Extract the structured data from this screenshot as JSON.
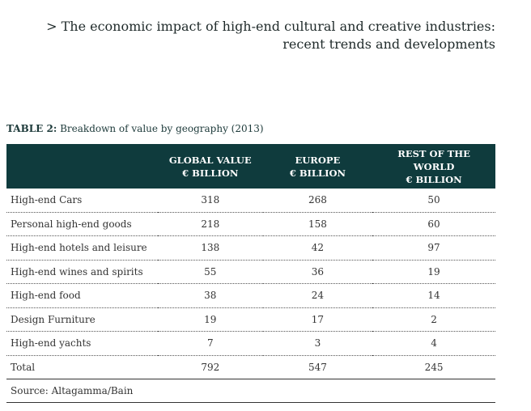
{
  "header": {
    "line1": "> The economic impact of high-end cultural and creative industries:",
    "line2": "recent trends and developments"
  },
  "table": {
    "label": "TABLE 2:",
    "title": "Breakdown of value by geography (2013)",
    "columns": [
      {
        "line1": "",
        "line2": ""
      },
      {
        "line1": "GLOBAL VALUE",
        "line2": "€ BILLION"
      },
      {
        "line1": "EUROPE",
        "line2": "€ BILLION"
      },
      {
        "line1": "REST OF THE WORLD",
        "line2": "€ BILLION"
      }
    ],
    "rows": [
      {
        "label": "High-end Cars",
        "global": "318",
        "europe": "268",
        "rest": "50"
      },
      {
        "label": "Personal high-end goods",
        "global": "218",
        "europe": "158",
        "rest": "60"
      },
      {
        "label": "High-end hotels and leisure",
        "global": "138",
        "europe": "42",
        "rest": "97"
      },
      {
        "label": "High-end wines and spirits",
        "global": "55",
        "europe": "36",
        "rest": "19"
      },
      {
        "label": "High-end food",
        "global": "38",
        "europe": "24",
        "rest": "14"
      },
      {
        "label": "Design Furniture",
        "global": "19",
        "europe": "17",
        "rest": "2"
      },
      {
        "label": "High-end yachts",
        "global": "7",
        "europe": "3",
        "rest": "4"
      }
    ],
    "total": {
      "label": "Total",
      "global": "792",
      "europe": "547",
      "rest": "245"
    },
    "source": "Source: Altagamma/Bain"
  },
  "colors": {
    "header_bg": "#0f3b3d",
    "header_text": "#ffffff"
  }
}
